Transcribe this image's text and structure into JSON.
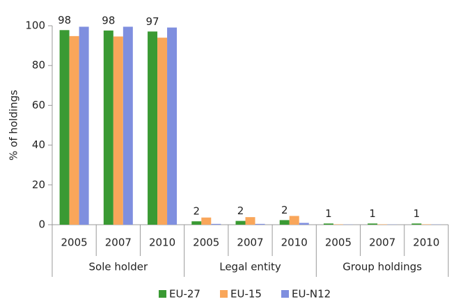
{
  "chart_data": {
    "type": "bar",
    "categories": [
      "2005",
      "2007",
      "2010",
      "2005",
      "2007",
      "2010",
      "2005",
      "2007",
      "2010"
    ],
    "groups": [
      "Sole holder",
      "Legal entity",
      "Group holdings"
    ],
    "series": [
      {
        "name": "EU-27",
        "color": "#3a9a33",
        "values": [
          97.8,
          97.6,
          97.1,
          1.7,
          1.9,
          2.3,
          0.6,
          0.6,
          0.6
        ],
        "value_labels": [
          "98",
          "98",
          "97",
          "2",
          "2",
          "2",
          "1",
          "1",
          "1"
        ]
      },
      {
        "name": "EU-15",
        "color": "#f9a65a",
        "values": [
          94.8,
          94.6,
          94.0,
          3.6,
          3.8,
          4.4,
          0.2,
          0.2,
          0.2
        ]
      },
      {
        "name": "EU-N12",
        "color": "#7f8fdf",
        "values": [
          99.5,
          99.5,
          99.1,
          0.4,
          0.4,
          0.9,
          0.1,
          0.1,
          0.1
        ]
      }
    ],
    "y_label": "% of holdings",
    "ylim": [
      0,
      100
    ],
    "yticks": [
      0,
      20,
      40,
      60,
      80,
      100
    ],
    "grid": false
  }
}
